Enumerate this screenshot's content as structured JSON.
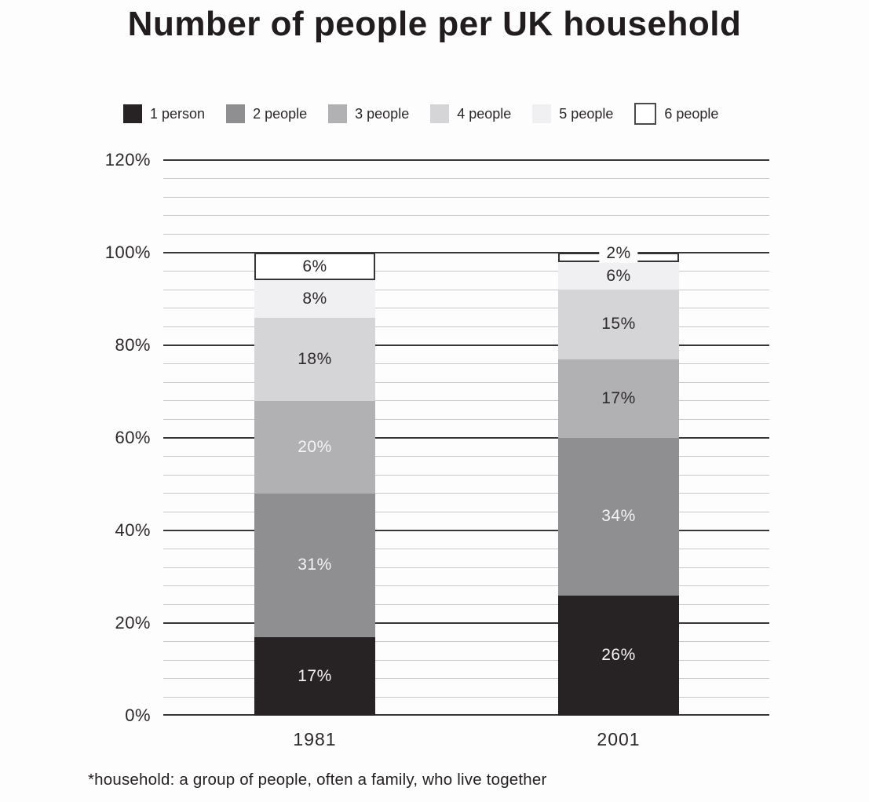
{
  "title": "Number of people per UK household",
  "footnote": "*household: a group of people, often a family, who live together",
  "colors": {
    "background": "#fdfdfd",
    "major_gridline": "#39363a",
    "minor_gridline": "#c9c8ca",
    "text": "#2b2728",
    "light_label": "#f5f4f4",
    "dark_label": "#2e2a2b"
  },
  "chart_data": {
    "type": "bar",
    "variant": "stacked-column",
    "title": "Number of people per UK household",
    "categories": [
      "1981",
      "2001"
    ],
    "series": [
      {
        "name": "1 person",
        "values": [
          17,
          26
        ],
        "color": "#272324",
        "label_colors": [
          "#f5f4f4",
          "#f5f4f4"
        ]
      },
      {
        "name": "2 people",
        "values": [
          31,
          34
        ],
        "color": "#8f8e90",
        "label_colors": [
          "#f5f4f4",
          "#f5f4f4"
        ]
      },
      {
        "name": "3 people",
        "values": [
          20,
          17
        ],
        "color": "#b1b0b2",
        "label_colors": [
          "#f5f4f4",
          "#2e2a2b"
        ]
      },
      {
        "name": "4 people",
        "values": [
          18,
          15
        ],
        "color": "#d5d4d6",
        "label_colors": [
          "#2e2a2b",
          "#2e2a2b"
        ]
      },
      {
        "name": "5 people",
        "values": [
          8,
          6
        ],
        "color": "#f0eff1",
        "label_colors": [
          "#2e2a2b",
          "#2e2a2b"
        ]
      },
      {
        "name": "6 people",
        "values": [
          6,
          2
        ],
        "color": "#ffffff",
        "border_color": "#363436",
        "label_colors": [
          "#2e2a2b",
          "#2e2a2b"
        ]
      }
    ],
    "data_label_suffix": "%",
    "ylim": [
      0,
      120
    ],
    "ytick_major_step": 20,
    "ytick_minor_step": 4,
    "ytick_labels": [
      "0%",
      "20%",
      "40%",
      "60%",
      "80%",
      "100%",
      "120%"
    ],
    "xlabel": "",
    "ylabel": "",
    "grid": "on",
    "legend_position": "top"
  }
}
